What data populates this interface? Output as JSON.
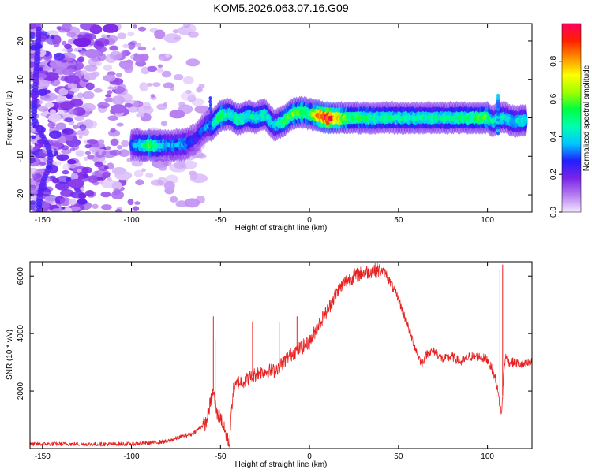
{
  "title": "KOM5.2026.063.07.16.G09",
  "chart_data": [
    {
      "type": "heatmap",
      "xlabel": "Height of straight line (km)",
      "ylabel": "Frequency (Hz)",
      "xlim": [
        -157,
        125
      ],
      "ylim": [
        -24.5,
        24.5
      ],
      "xticks": [
        -150,
        -100,
        -50,
        0,
        50,
        100
      ],
      "yticks": [
        -20,
        -10,
        0,
        10,
        20
      ],
      "colorbar": {
        "label": "Normalized spectral amplitude",
        "range": [
          0,
          1
        ],
        "ticks": [
          0.0,
          0.2,
          0.4,
          0.6,
          0.8
        ],
        "tick_labels": [
          "0.0",
          "0.2",
          "0.4",
          "0.6",
          "0.8"
        ],
        "colors": [
          "#f2e6ff",
          "#b57cf0",
          "#7a22e8",
          "#2020ff",
          "#00c8ff",
          "#00ffb0",
          "#00ff40",
          "#a0ff00",
          "#ffff00",
          "#ff9000",
          "#ff2000",
          "#ff0060"
        ]
      },
      "ridge": {
        "x": [
          -100,
          -90,
          -80,
          -70,
          -64,
          -60,
          -57,
          -55,
          -50,
          -45,
          -40,
          -35,
          -30,
          -25,
          -20,
          -15,
          -10,
          -5,
          0,
          5,
          10,
          20,
          40,
          60,
          80,
          100,
          103,
          106,
          110,
          115,
          122
        ],
        "y": [
          -7,
          -7.2,
          -7.2,
          -6.8,
          -5.5,
          -3,
          -2,
          -2,
          0.5,
          1,
          -0.5,
          0.5,
          0,
          1,
          -2,
          -1,
          1,
          1.5,
          1,
          0.5,
          0,
          0,
          0,
          0,
          0,
          0,
          -1,
          0,
          0,
          -1,
          -0.5
        ],
        "amplitude": [
          0.3,
          0.55,
          0.35,
          0.35,
          0.25,
          0.3,
          0.35,
          0.4,
          0.55,
          0.45,
          0.5,
          0.45,
          0.45,
          0.45,
          0.4,
          0.5,
          0.55,
          0.6,
          0.5,
          0.8,
          1.0,
          0.55,
          0.45,
          0.45,
          0.45,
          0.55,
          0.4,
          0.45,
          0.4,
          0.4,
          0.45
        ]
      },
      "noise_region_x": [
        -157,
        -60
      ]
    },
    {
      "type": "line",
      "xlabel": "Height of straight line (km)",
      "ylabel": "SNR (10 * v/v)",
      "xlim": [
        -157,
        125
      ],
      "ylim": [
        0,
        6500
      ],
      "xticks": [
        -150,
        -100,
        -50,
        0,
        50,
        100
      ],
      "yticks": [
        2000,
        4000,
        6000
      ],
      "series": [
        {
          "name": "SNR",
          "color": "#e82020",
          "x": [
            -157,
            -140,
            -120,
            -100,
            -90,
            -80,
            -75,
            -70,
            -66,
            -62,
            -58,
            -56,
            -54,
            -52,
            -50,
            -47,
            -45,
            -43,
            -40,
            -35,
            -30,
            -25,
            -20,
            -15,
            -10,
            -5,
            0,
            5,
            10,
            15,
            20,
            25,
            30,
            35,
            40,
            43,
            46,
            50,
            55,
            60,
            63,
            66,
            70,
            75,
            80,
            85,
            90,
            95,
            100,
            103,
            105,
            107,
            108,
            109,
            110,
            112,
            115,
            120,
            125
          ],
          "y": [
            150,
            160,
            150,
            160,
            200,
            250,
            350,
            450,
            500,
            700,
            900,
            1500,
            2000,
            1200,
            1100,
            500,
            150,
            2000,
            2300,
            2400,
            2600,
            2700,
            2700,
            3000,
            3300,
            3500,
            3700,
            4300,
            4800,
            5400,
            5800,
            6000,
            6100,
            6200,
            6200,
            6100,
            5700,
            5200,
            4300,
            3400,
            2950,
            3300,
            3400,
            3100,
            3200,
            3000,
            3200,
            3200,
            3100,
            2700,
            2300,
            1500,
            1200,
            2500,
            3200,
            3000,
            3000,
            2900,
            3000
          ]
        }
      ],
      "spikes": [
        {
          "x": -54,
          "y": 4600
        },
        {
          "x": -53,
          "y": 3800
        },
        {
          "x": -32,
          "y": 4400
        },
        {
          "x": -17,
          "y": 4400
        },
        {
          "x": -7,
          "y": 4600
        },
        {
          "x": 107,
          "y": 6200
        },
        {
          "x": 108.5,
          "y": 6400
        }
      ]
    }
  ]
}
